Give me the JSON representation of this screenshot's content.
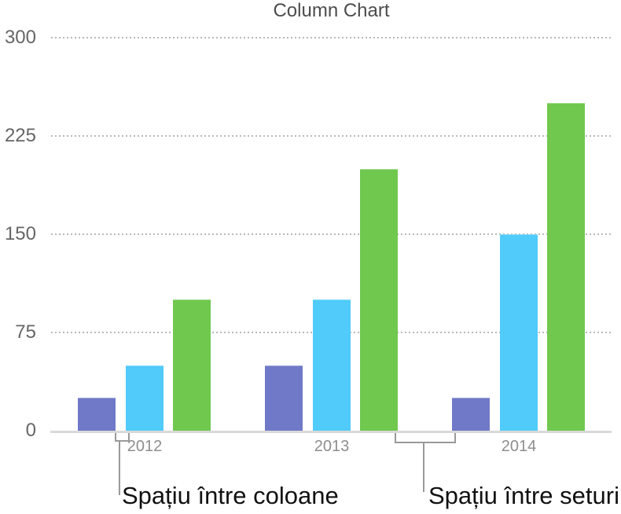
{
  "chart_data": {
    "type": "bar",
    "title": "Column Chart",
    "categories": [
      "2012",
      "2013",
      "2014"
    ],
    "series": [
      {
        "name": "purple",
        "color": "#7079c7",
        "values": [
          25,
          50,
          25
        ]
      },
      {
        "name": "blue",
        "color": "#50cbfa",
        "values": [
          50,
          100,
          150
        ]
      },
      {
        "name": "green",
        "color": "#70c84f",
        "values": [
          100,
          200,
          250
        ]
      }
    ],
    "ylim": [
      0,
      300
    ],
    "y_ticks": [
      0,
      75,
      150,
      225,
      300
    ],
    "xlabel": "",
    "ylabel": "",
    "grid": "horizontal-dotted",
    "legend": "none"
  },
  "annotations": {
    "columns_gap_label": "Spațiu între coloane",
    "sets_gap_label": "Spațiu între seturi"
  },
  "colors": {
    "title": "#4c4c4c",
    "y_labels": "#666666",
    "x_labels": "#8e8e8e",
    "gridline": "#b9b9b9",
    "axis_line": "#d9d9d9",
    "bracket": "#999999",
    "annotation_text": "#111111",
    "background": "#ffffff"
  }
}
